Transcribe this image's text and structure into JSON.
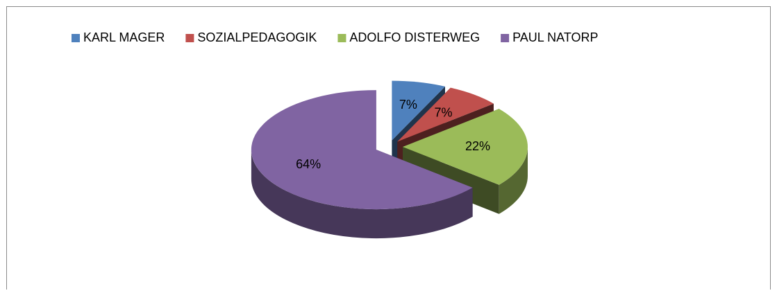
{
  "chart_data": {
    "type": "pie",
    "categories": [
      "KARL MAGER",
      "SOZIALPEDAGOGIK",
      "ADOLFO DISTERWEG",
      "PAUL NATORP"
    ],
    "values": [
      7,
      7,
      22,
      64
    ],
    "value_labels": [
      "7%",
      "7%",
      "22%",
      "64%"
    ],
    "colors": [
      "#4f81bd",
      "#c0504d",
      "#9bbb59",
      "#8064a2"
    ],
    "legend": "top"
  }
}
